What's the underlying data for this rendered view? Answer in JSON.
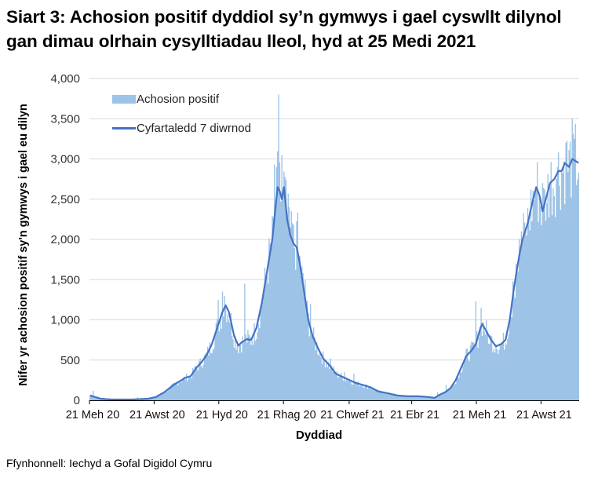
{
  "title": "Siart 3: Achosion positif dyddiol sy’n gymwys i gael cyswllt dilynol gan dimau olrhain cysylltiadau lleol, hyd at 25 Medi 2021",
  "source": "Ffynhonnell: Iechyd a Gofal Digidol Cymru",
  "colors": {
    "bars": "#9dc3e6",
    "line": "#4472c4",
    "grid": "#d9d9d9",
    "axis": "#000000"
  },
  "legend": {
    "bars_label": "Achosion positif",
    "line_label": "Cyfartaledd 7 diwrnod"
  },
  "chart_data": {
    "type": "bar",
    "title": "Siart 3: Achosion positif dyddiol sy’n gymwys i gael cyswllt dilynol gan dimau olrhain cysylltiadau lleol, hyd at 25 Medi 2021",
    "xlabel": "Dyddiad",
    "ylabel": "Nifer yr achosion positif sy'n gymwys i gael eu dilyn",
    "ylim": [
      0,
      4000
    ],
    "yticks": [
      0,
      500,
      1000,
      1500,
      2000,
      2500,
      3000,
      3500,
      4000
    ],
    "ytick_labels": [
      "0",
      "500",
      "1,000",
      "1,500",
      "2,000",
      "2,500",
      "3,000",
      "3,500",
      "4,000"
    ],
    "x_start": "21 Jun 2020",
    "x_end": "25 Sep 2021",
    "n_days": 462,
    "xtick_labels": [
      "21 Meh 20",
      "21 Awst 20",
      "21 Hyd 20",
      "21 Rhag 20",
      "21 Chwef 21",
      "21 Ebr 21",
      "21 Meh 21",
      "21 Awst 21"
    ],
    "xtick_days": [
      0,
      61,
      122,
      183,
      245,
      304,
      365,
      426
    ],
    "grid": true,
    "legend_position": "upper-left inside",
    "series": [
      {
        "name": "Cyfartaledd 7 diwrnod",
        "type": "line",
        "keypoints": [
          [
            0,
            60
          ],
          [
            5,
            40
          ],
          [
            10,
            20
          ],
          [
            20,
            10
          ],
          [
            40,
            10
          ],
          [
            55,
            20
          ],
          [
            62,
            40
          ],
          [
            70,
            100
          ],
          [
            80,
            200
          ],
          [
            90,
            280
          ],
          [
            95,
            300
          ],
          [
            100,
            400
          ],
          [
            105,
            470
          ],
          [
            110,
            560
          ],
          [
            115,
            700
          ],
          [
            120,
            900
          ],
          [
            125,
            1100
          ],
          [
            128,
            1180
          ],
          [
            131,
            1100
          ],
          [
            136,
            800
          ],
          [
            140,
            680
          ],
          [
            143,
            720
          ],
          [
            148,
            760
          ],
          [
            152,
            750
          ],
          [
            157,
            900
          ],
          [
            162,
            1200
          ],
          [
            167,
            1600
          ],
          [
            172,
            2000
          ],
          [
            175,
            2400
          ],
          [
            177,
            2650
          ],
          [
            179,
            2600
          ],
          [
            181,
            2500
          ],
          [
            183,
            2650
          ],
          [
            186,
            2250
          ],
          [
            189,
            2050
          ],
          [
            192,
            1950
          ],
          [
            195,
            1900
          ],
          [
            198,
            1700
          ],
          [
            202,
            1350
          ],
          [
            206,
            1000
          ],
          [
            210,
            800
          ],
          [
            215,
            650
          ],
          [
            220,
            520
          ],
          [
            225,
            450
          ],
          [
            232,
            330
          ],
          [
            240,
            280
          ],
          [
            250,
            220
          ],
          [
            260,
            180
          ],
          [
            265,
            160
          ],
          [
            272,
            110
          ],
          [
            280,
            90
          ],
          [
            290,
            60
          ],
          [
            300,
            50
          ],
          [
            310,
            50
          ],
          [
            320,
            40
          ],
          [
            325,
            30
          ],
          [
            330,
            70
          ],
          [
            335,
            100
          ],
          [
            340,
            150
          ],
          [
            345,
            250
          ],
          [
            350,
            400
          ],
          [
            355,
            550
          ],
          [
            360,
            620
          ],
          [
            364,
            700
          ],
          [
            368,
            880
          ],
          [
            370,
            950
          ],
          [
            373,
            880
          ],
          [
            378,
            760
          ],
          [
            383,
            670
          ],
          [
            388,
            700
          ],
          [
            392,
            750
          ],
          [
            396,
            1000
          ],
          [
            400,
            1400
          ],
          [
            405,
            1800
          ],
          [
            408,
            2000
          ],
          [
            413,
            2200
          ],
          [
            418,
            2500
          ],
          [
            421,
            2650
          ],
          [
            424,
            2550
          ],
          [
            427,
            2350
          ],
          [
            430,
            2500
          ],
          [
            434,
            2700
          ],
          [
            438,
            2750
          ],
          [
            442,
            2850
          ],
          [
            445,
            2850
          ],
          [
            448,
            2950
          ],
          [
            452,
            2900
          ],
          [
            455,
            3000
          ],
          [
            461,
            2950
          ]
        ]
      },
      {
        "name": "Achosion positif",
        "type": "bar",
        "note": "daily values fluctuate around the 7-day average; notable spikes listed",
        "spikes": [
          [
            3,
            120
          ],
          [
            45,
            40
          ],
          [
            121,
            1250
          ],
          [
            125,
            1350
          ],
          [
            127,
            1300
          ],
          [
            146,
            1450
          ],
          [
            174,
            2930
          ],
          [
            176,
            2900
          ],
          [
            178,
            3800
          ],
          [
            181,
            3050
          ],
          [
            188,
            2400
          ],
          [
            190,
            2350
          ],
          [
            191,
            2200
          ],
          [
            196,
            2330
          ],
          [
            203,
            1500
          ],
          [
            208,
            1200
          ],
          [
            227,
            520
          ],
          [
            240,
            350
          ],
          [
            249,
            330
          ],
          [
            328,
            100
          ],
          [
            336,
            190
          ],
          [
            364,
            1230
          ],
          [
            369,
            1150
          ],
          [
            377,
            700
          ],
          [
            383,
            700
          ],
          [
            396,
            1000
          ],
          [
            399,
            1480
          ],
          [
            402,
            1700
          ],
          [
            407,
            2100
          ],
          [
            411,
            2150
          ],
          [
            420,
            2600
          ],
          [
            427,
            2700
          ],
          [
            431,
            2450
          ],
          [
            441,
            2900
          ],
          [
            449,
            3200
          ],
          [
            457,
            3250
          ]
        ]
      }
    ]
  }
}
